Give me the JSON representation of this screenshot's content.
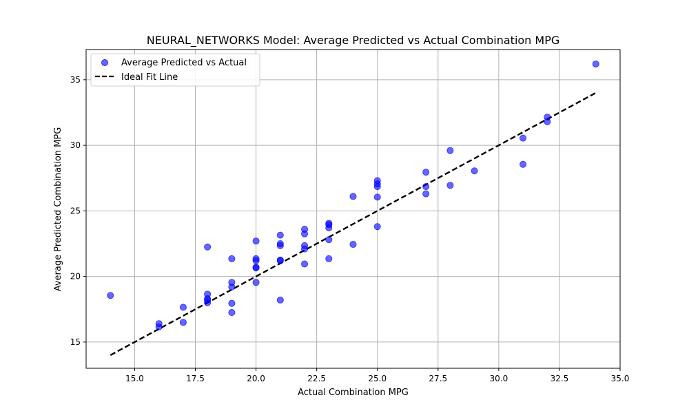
{
  "chart_data": {
    "type": "scatter",
    "title": "NEURAL_NETWORKS Model: Average Predicted vs Actual Combination MPG",
    "xlabel": "Actual Combination MPG",
    "ylabel": "Average Predicted Combination MPG",
    "xlim": [
      13,
      35
    ],
    "ylim": [
      13,
      37.3
    ],
    "xticks": [
      15.0,
      17.5,
      20.0,
      22.5,
      25.0,
      27.5,
      30.0,
      32.5,
      35.0
    ],
    "xtick_labels": [
      "15.0",
      "17.5",
      "20.0",
      "22.5",
      "25.0",
      "27.5",
      "30.0",
      "32.5",
      "35.0"
    ],
    "yticks": [
      15,
      20,
      25,
      30,
      35
    ],
    "ytick_labels": [
      "15",
      "20",
      "25",
      "30",
      "35"
    ],
    "grid": true,
    "legend_position": "top-left",
    "series": [
      {
        "name": "Average Predicted vs Actual",
        "kind": "scatter",
        "color": "#0000ff",
        "points": [
          [
            14,
            18.55
          ],
          [
            16,
            16.15
          ],
          [
            16,
            16.4
          ],
          [
            17,
            17.65
          ],
          [
            17,
            16.5
          ],
          [
            18,
            22.25
          ],
          [
            18,
            18.65
          ],
          [
            18,
            18.3
          ],
          [
            18,
            18.2
          ],
          [
            18,
            18.0
          ],
          [
            19,
            21.35
          ],
          [
            19,
            19.55
          ],
          [
            19,
            19.2
          ],
          [
            19,
            17.95
          ],
          [
            19,
            17.25
          ],
          [
            20,
            22.7
          ],
          [
            20,
            21.35
          ],
          [
            20,
            21.2
          ],
          [
            20,
            20.7
          ],
          [
            20,
            20.65
          ],
          [
            20,
            19.55
          ],
          [
            21,
            23.15
          ],
          [
            21,
            22.5
          ],
          [
            21,
            22.35
          ],
          [
            21,
            21.25
          ],
          [
            21,
            21.2
          ],
          [
            21,
            18.2
          ],
          [
            22,
            23.6
          ],
          [
            22,
            23.25
          ],
          [
            22,
            22.35
          ],
          [
            22,
            22.1
          ],
          [
            22,
            20.95
          ],
          [
            23,
            24.05
          ],
          [
            23,
            23.95
          ],
          [
            23,
            23.7
          ],
          [
            23,
            22.8
          ],
          [
            23,
            21.35
          ],
          [
            24,
            26.1
          ],
          [
            24,
            22.45
          ],
          [
            25,
            27.3
          ],
          [
            25,
            27.05
          ],
          [
            25,
            26.85
          ],
          [
            25,
            26.05
          ],
          [
            25,
            23.8
          ],
          [
            27,
            27.95
          ],
          [
            27,
            26.85
          ],
          [
            27,
            26.3
          ],
          [
            28,
            29.6
          ],
          [
            28,
            26.95
          ],
          [
            29,
            28.05
          ],
          [
            31,
            30.55
          ],
          [
            31,
            28.55
          ],
          [
            32,
            32.15
          ],
          [
            32,
            31.8
          ],
          [
            34,
            36.2
          ]
        ]
      },
      {
        "name": "Ideal Fit Line",
        "kind": "line",
        "color": "#000000",
        "style": "dashed",
        "x": [
          14,
          34
        ],
        "y": [
          14,
          34
        ]
      }
    ]
  }
}
